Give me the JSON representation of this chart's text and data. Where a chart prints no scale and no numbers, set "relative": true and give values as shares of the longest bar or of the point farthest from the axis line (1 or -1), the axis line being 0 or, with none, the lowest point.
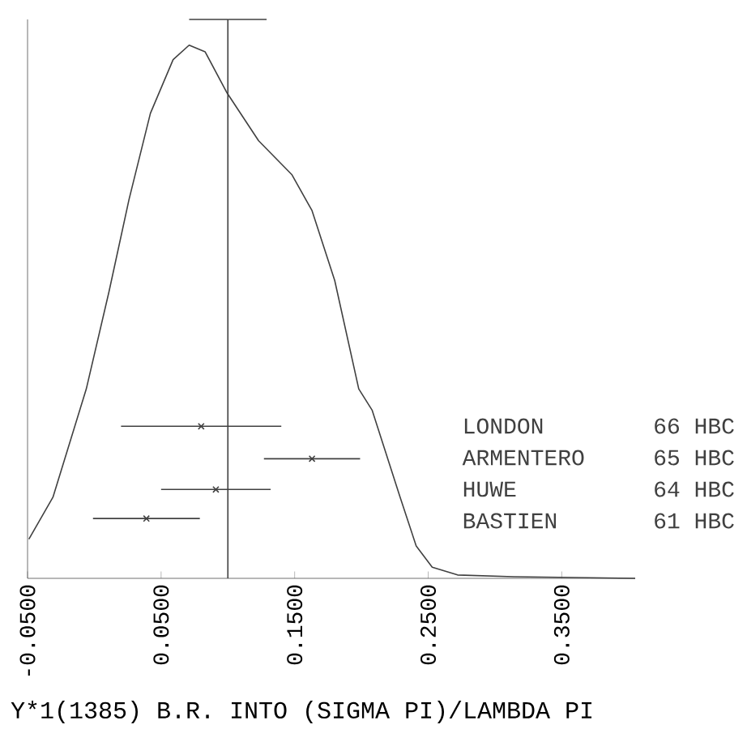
{
  "chart_data": {
    "type": "line",
    "relative": true,
    "xlabel": "Y*1(1385) B.R. INTO (SIGMA PI)/LAMBDA PI",
    "xlim": [
      -0.05,
      0.405
    ],
    "xticks": [
      {
        "value": -0.05,
        "label": "-0.0500"
      },
      {
        "value": 0.05,
        "label": "0.0500"
      },
      {
        "value": 0.15,
        "label": "0.1500"
      },
      {
        "value": 0.25,
        "label": "0.2500"
      },
      {
        "value": 0.35,
        "label": "0.3500"
      }
    ],
    "series": [
      {
        "color": "#404040",
        "marker": "none",
        "x": [
          -0.049,
          -0.031,
          -0.006,
          0.011,
          0.026,
          0.042,
          0.059,
          0.071,
          0.083,
          0.099,
          0.123,
          0.148,
          0.163,
          0.18,
          0.198,
          0.208,
          0.229,
          0.241,
          0.253,
          0.272,
          0.314,
          0.405
        ],
        "values": [
          0.07,
          0.145,
          0.339,
          0.513,
          0.678,
          0.832,
          0.928,
          0.954,
          0.942,
          0.87,
          0.783,
          0.722,
          0.658,
          0.533,
          0.339,
          0.301,
          0.145,
          0.058,
          0.02,
          0.006,
          0.003,
          0
        ]
      },
      {
        "type": "scatter",
        "color": "#404040",
        "marker": "cross",
        "x": [
          0.08,
          0.163,
          0.091,
          0.039
        ],
        "values": [
          0.272,
          0.214,
          0.159,
          0.107
        ],
        "xerrors": [
          0.06,
          0.036,
          0.041,
          0.04
        ]
      },
      {
        "type": "line",
        "color": "#404040",
        "marker": "none",
        "x": [
          0.1,
          0.1
        ],
        "values": [
          0,
          1
        ],
        "xerrors": [
          null,
          0.029
        ]
      }
    ],
    "annotations": [
      "LONDON",
      "66 HBC",
      "ARMENTERO",
      "65 HBC",
      "HUWE",
      "64 HBC",
      "BASTIEN",
      "61 HBC"
    ]
  }
}
